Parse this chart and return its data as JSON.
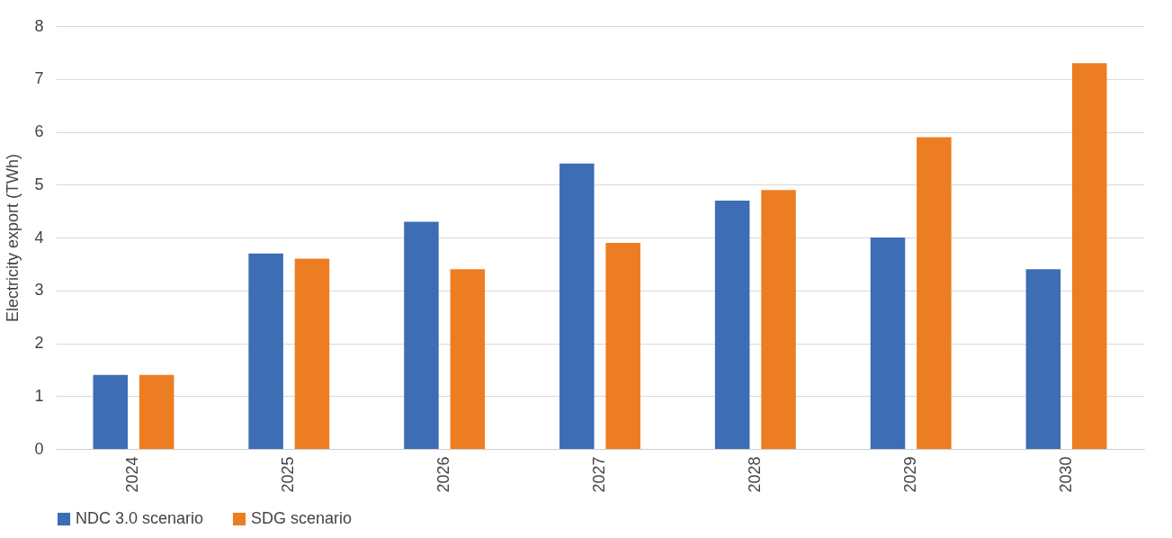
{
  "chart_data": {
    "type": "bar",
    "ylabel": "Electricity export (TWh)",
    "categories": [
      "2024",
      "2025",
      "2026",
      "2027",
      "2028",
      "2029",
      "2030"
    ],
    "series": [
      {
        "name": "NDC 3.0 scenario",
        "color": "#3c6db5",
        "values": [
          1.4,
          3.7,
          4.3,
          5.4,
          4.7,
          4.0,
          3.4
        ]
      },
      {
        "name": "SDG scenario",
        "color": "#ed7d23",
        "values": [
          1.4,
          3.6,
          3.4,
          3.9,
          4.9,
          5.9,
          7.3
        ]
      }
    ],
    "ylim": [
      0,
      8
    ],
    "yticks": [
      0,
      1,
      2,
      3,
      4,
      5,
      6,
      7,
      8
    ],
    "grid": "y",
    "legend": "bottom"
  }
}
